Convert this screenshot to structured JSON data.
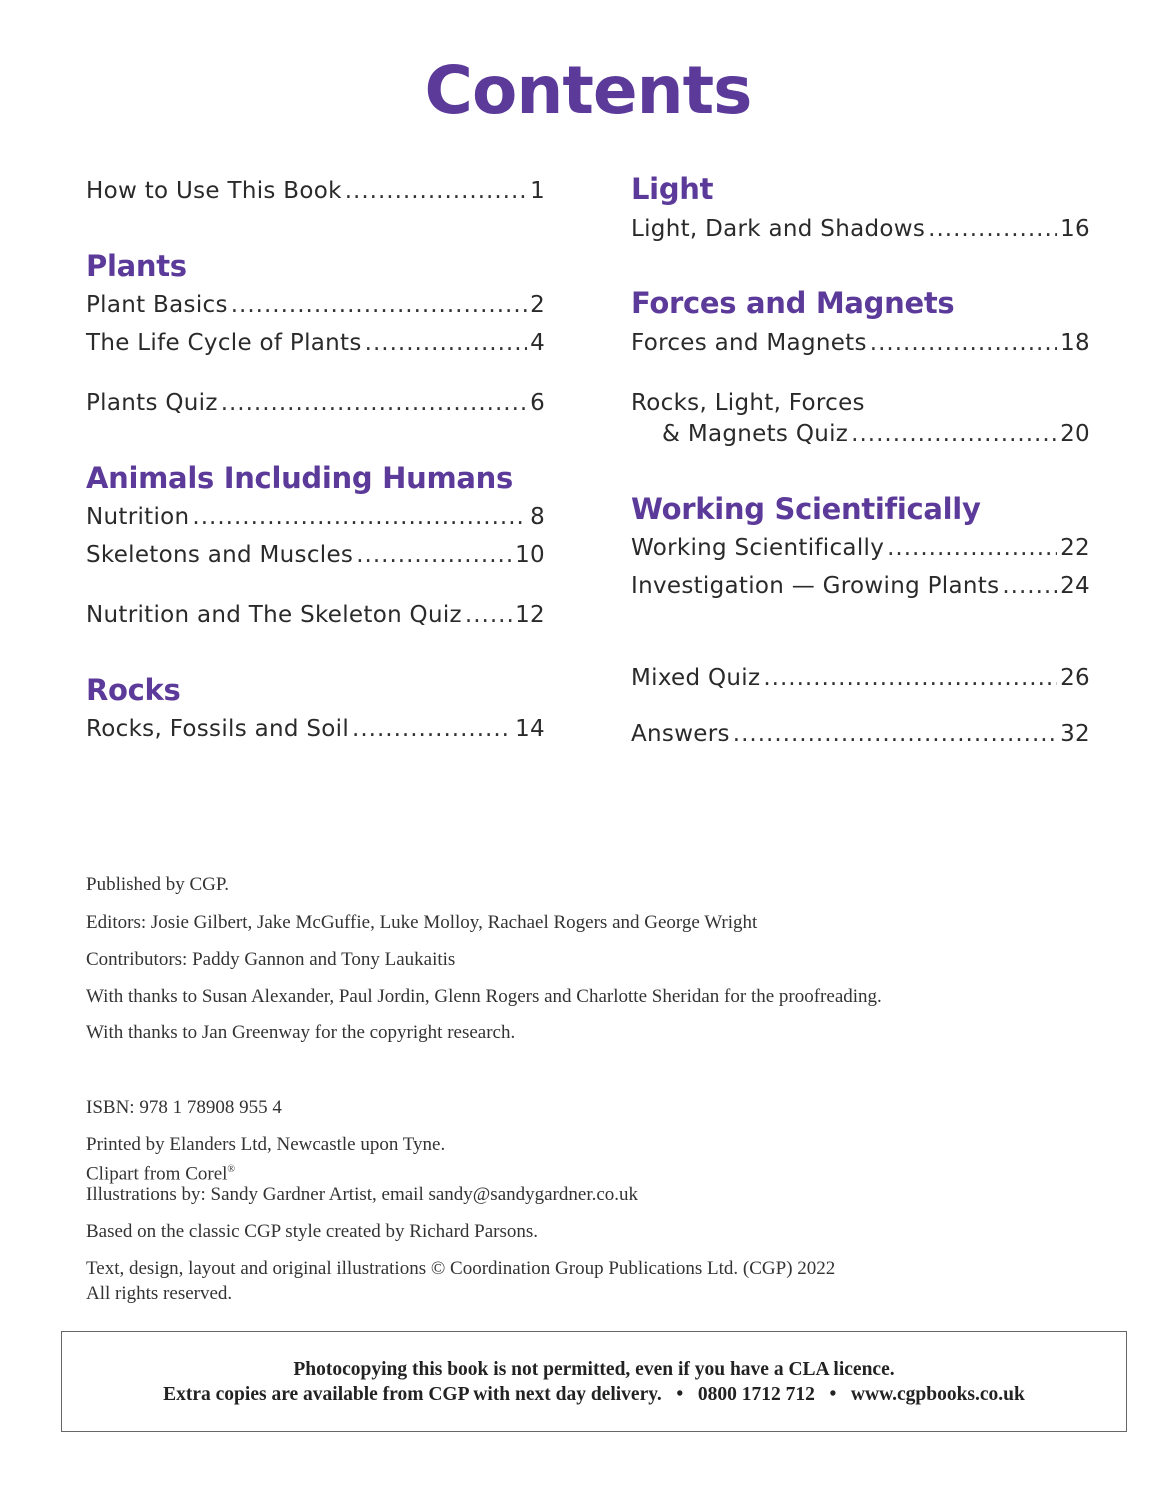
{
  "title": "Contents",
  "accent_color": "#5b3a9a",
  "left": {
    "intro": {
      "label": "How to Use This Book",
      "page": "1"
    },
    "plants": {
      "heading": "Plants",
      "items": [
        {
          "label": "Plant Basics",
          "page": "2"
        },
        {
          "label": "The Life Cycle of Plants",
          "page": "4"
        },
        {
          "label": "Plants Quiz",
          "page": "6"
        }
      ]
    },
    "animals": {
      "heading": "Animals Including Humans",
      "items": [
        {
          "label": "Nutrition",
          "page": "8"
        },
        {
          "label": "Skeletons and Muscles",
          "page": "10"
        },
        {
          "label": "Nutrition and The Skeleton Quiz",
          "page": "12"
        }
      ]
    },
    "rocks": {
      "heading": "Rocks",
      "items": [
        {
          "label": "Rocks, Fossils and Soil",
          "page": "14"
        }
      ]
    }
  },
  "right": {
    "light": {
      "heading": "Light",
      "items": [
        {
          "label": "Light, Dark and Shadows",
          "page": "16"
        }
      ]
    },
    "forces": {
      "heading": "Forces and Magnets",
      "items": [
        {
          "label": "Forces and Magnets",
          "page": "18"
        },
        {
          "label_line1": "Rocks, Light, Forces",
          "label": "& Magnets Quiz",
          "page": "20"
        }
      ]
    },
    "working": {
      "heading": "Working Scientifically",
      "items": [
        {
          "label": "Working Scientifically",
          "page": "22"
        },
        {
          "label": "Investigation — Growing Plants",
          "page": "24"
        }
      ]
    },
    "mixed": {
      "label": "Mixed Quiz",
      "page": "26"
    },
    "answers": {
      "label": "Answers",
      "page": "32"
    }
  },
  "credits": [
    "Published by CGP.",
    "Editors: Josie Gilbert, Jake McGuffie, Luke Molloy, Rachael Rogers and George Wright",
    "Contributors: Paddy Gannon and Tony Laukaitis",
    "With thanks to Susan Alexander, Paul Jordin, Glenn Rogers and Charlotte Sheridan for the proofreading.",
    "With thanks to Jan Greenway for the copyright research.",
    "ISBN: 978 1 78908 955 4",
    "Printed by Elanders Ltd, Newcastle upon Tyne.",
    "Clipart from Corel",
    "Illustrations by: Sandy Gardner Artist, email sandy@sandygardner.co.uk",
    "Based on the classic CGP style created by Richard Parsons.",
    "Text, design, layout and original illustrations © Coordination Group Publications Ltd. (CGP) 2022",
    "All rights reserved."
  ],
  "notice": {
    "line1": "Photocopying this book is not permitted, even if you have a CLA licence.",
    "line2": "Extra copies are available from CGP with next day delivery.   •   0800 1712 712   •   www.cgpbooks.co.uk"
  }
}
